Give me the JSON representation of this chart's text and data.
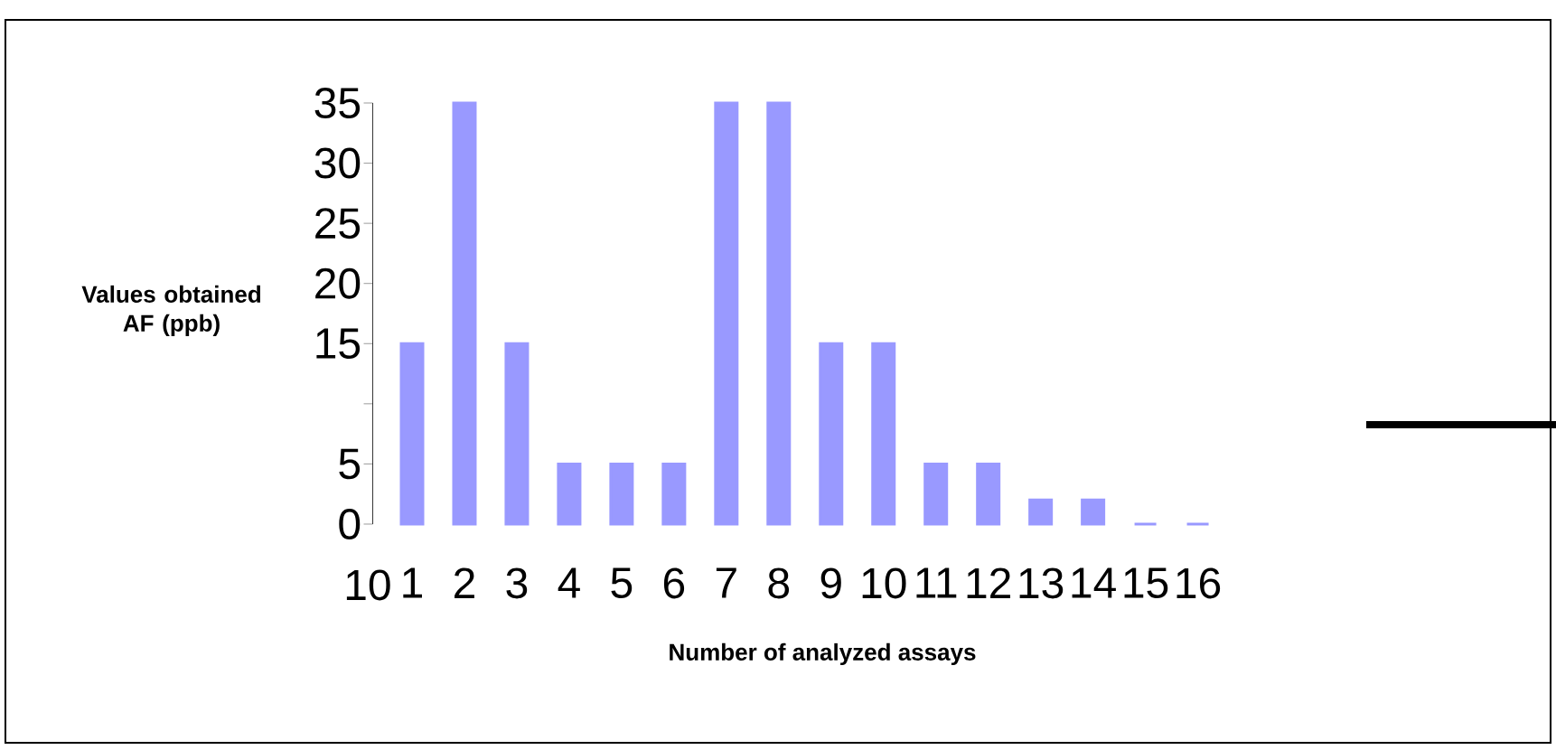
{
  "chart_data": {
    "type": "bar",
    "xlabel": "Number of analyzed  assays",
    "ylabel": "Values obtained AF (ppb)",
    "categories": [
      "1",
      "2",
      "3",
      "4",
      "5",
      "6",
      "7",
      "8",
      "9",
      "10",
      "11",
      "12",
      "13",
      "14",
      "15",
      "16"
    ],
    "values": [
      15,
      35,
      15,
      5,
      5,
      5,
      35,
      35,
      15,
      15,
      5,
      5,
      2,
      2,
      0,
      0
    ],
    "color": "#9999ff",
    "ylim": [
      0,
      35
    ],
    "yticks": [
      0,
      5,
      {
        "value": 10,
        "label": null
      },
      15,
      20,
      25,
      30,
      35
    ],
    "annotations": [
      "10"
    ],
    "grid": false
  }
}
